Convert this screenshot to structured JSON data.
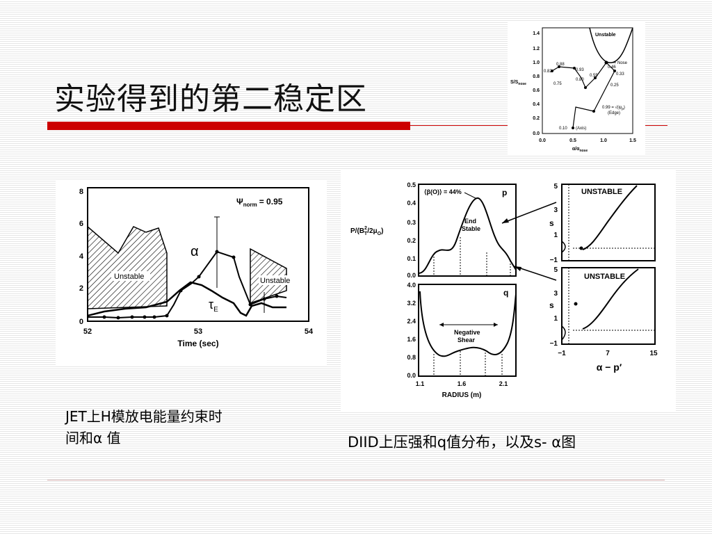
{
  "slide": {
    "title": "实验得到的第二稳定区",
    "caption_left_line1": "JET上H模放电能量约束时",
    "caption_left_line2": "间和α 值",
    "caption_right": "DIID上压强和q值分布，以及s- α图",
    "accent_color": "#cc0000"
  },
  "jet_plot": {
    "psi_label": "Ψ",
    "psi_sub": "norm",
    "psi_value": "= 0.95",
    "alpha_label": "α",
    "tau_label": "τ",
    "tau_sub": "E",
    "unstable_left": "Unstable",
    "unstable_right": "Unstable",
    "xlabel": "Time (sec)",
    "x_ticks": [
      "52",
      "53",
      "54"
    ],
    "y_ticks": [
      "0",
      "2",
      "4",
      "6",
      "8"
    ]
  },
  "diid_profiles": {
    "p_ylabel": "P/(B",
    "p_ylabel_tail": "/2μ",
    "p_ylabel_sub": "T",
    "p_ylabel_sup": "2",
    "p_ylabel_sub2": "O",
    "p_ylabel_close": ")",
    "p_ticks": [
      "0.5",
      "0.4",
      "0.3",
      "0.2",
      "0.1",
      "0.0"
    ],
    "q_ticks": [
      "4.0",
      "3.2",
      "2.4",
      "1.6",
      "0.8",
      "0.0"
    ],
    "beta_note": "⟨β(O)⟩ = 44%",
    "end_stable": [
      "End",
      "Stable"
    ],
    "negative_shear": [
      "Negative",
      "Shear"
    ],
    "p_tag": "p",
    "q_tag": "q",
    "xlabel": "RADIUS (m)",
    "x_ticks": [
      "1.1",
      "1.6",
      "2.1"
    ]
  },
  "diid_s_alpha": {
    "ylabel": "s",
    "unstable_top": "UNSTABLE",
    "unstable_bottom": "UNSTABLE",
    "top_y_ticks": [
      "5",
      "3",
      "1",
      "−1"
    ],
    "bottom_y_ticks": [
      "5",
      "3",
      "1",
      "−1"
    ],
    "x_ticks": [
      "−1",
      "7",
      "15"
    ],
    "xlabel": "α − p′"
  },
  "inset": {
    "y_ticks": [
      "1.4",
      "1.2",
      "1.0",
      "0.8",
      "0.6",
      "0.4",
      "0.2",
      "0.0"
    ],
    "x_ticks": [
      "0.0",
      "0.5",
      "1.0",
      "1.5"
    ],
    "ylabel": "S/S",
    "ylabel_sub": "nose",
    "xlabel": "α/α",
    "xlabel_sub": "nose",
    "unstable": "Unstable",
    "nose": "Nose",
    "points": [
      "0.88",
      "0.82",
      "0.93",
      "0.46",
      "0.33",
      "0.55",
      "0.80",
      "0.75",
      "0.25"
    ],
    "edge_label": "0.99 = √(ψ",
    "edge_label_close": ")",
    "edge_label_sub": "p",
    "edge": "(Edge)",
    "axis_point": "0.10",
    "axis_word": "(Axis)"
  }
}
